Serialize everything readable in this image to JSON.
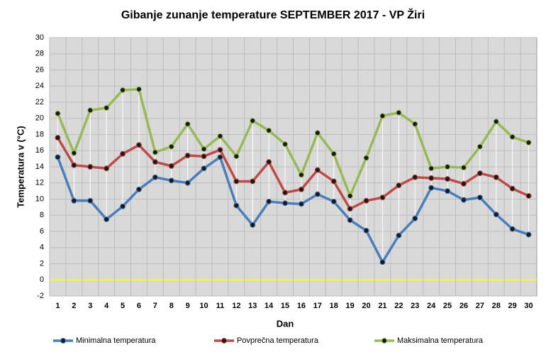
{
  "chart_data": {
    "type": "line",
    "title": "Gibanje zunanje temperature SEPTEMBER 2017 - VP Žiri",
    "x_label": "Dan",
    "y_label": "Temperatura v (°C)",
    "categories": [
      "1",
      "2",
      "3",
      "4",
      "5",
      "6",
      "7",
      "8",
      "9",
      "10",
      "11",
      "12",
      "13",
      "14",
      "15",
      "16",
      "17",
      "18",
      "19",
      "20",
      "21",
      "22",
      "23",
      "24",
      "25",
      "26",
      "27",
      "28",
      "29",
      "30"
    ],
    "series": [
      {
        "name": "Minimalna temperatura",
        "color": "#4a7ebb",
        "values": [
          15.2,
          9.8,
          9.8,
          7.5,
          9.1,
          11.2,
          12.7,
          12.3,
          12.0,
          13.8,
          15.2,
          9.2,
          6.8,
          9.7,
          9.5,
          9.4,
          10.6,
          9.7,
          7.4,
          6.1,
          2.2,
          5.5,
          7.6,
          11.4,
          11.0,
          9.9,
          10.2,
          8.1,
          6.3,
          5.6
        ]
      },
      {
        "name": "Povprečna temperatura",
        "color": "#be4b48",
        "values": [
          17.6,
          14.2,
          14.0,
          13.8,
          15.6,
          16.7,
          14.6,
          14.1,
          15.4,
          15.3,
          16.1,
          12.2,
          12.2,
          14.6,
          10.8,
          11.2,
          13.6,
          12.2,
          8.8,
          9.8,
          10.2,
          11.7,
          12.7,
          12.6,
          12.5,
          11.9,
          13.2,
          12.7,
          11.3,
          10.4
        ]
      },
      {
        "name": "Maksimalna temperatura",
        "color": "#98b954",
        "values": [
          20.6,
          15.7,
          21.0,
          21.3,
          23.5,
          23.6,
          15.8,
          16.5,
          19.3,
          16.2,
          17.8,
          15.3,
          19.7,
          18.5,
          16.8,
          13.0,
          18.2,
          15.6,
          10.4,
          15.1,
          20.3,
          20.7,
          19.3,
          13.8,
          14.0,
          13.9,
          16.5,
          19.6,
          17.7,
          17.0
        ]
      }
    ],
    "ylim": [
      -2,
      30
    ],
    "yticks": [
      -2,
      0,
      2,
      4,
      6,
      8,
      10,
      12,
      14,
      16,
      18,
      20,
      22,
      24,
      26,
      28,
      30
    ],
    "grid": true,
    "zero_line_color": "#ffff00",
    "hi_lo_lines": true,
    "legend": "bottom"
  }
}
